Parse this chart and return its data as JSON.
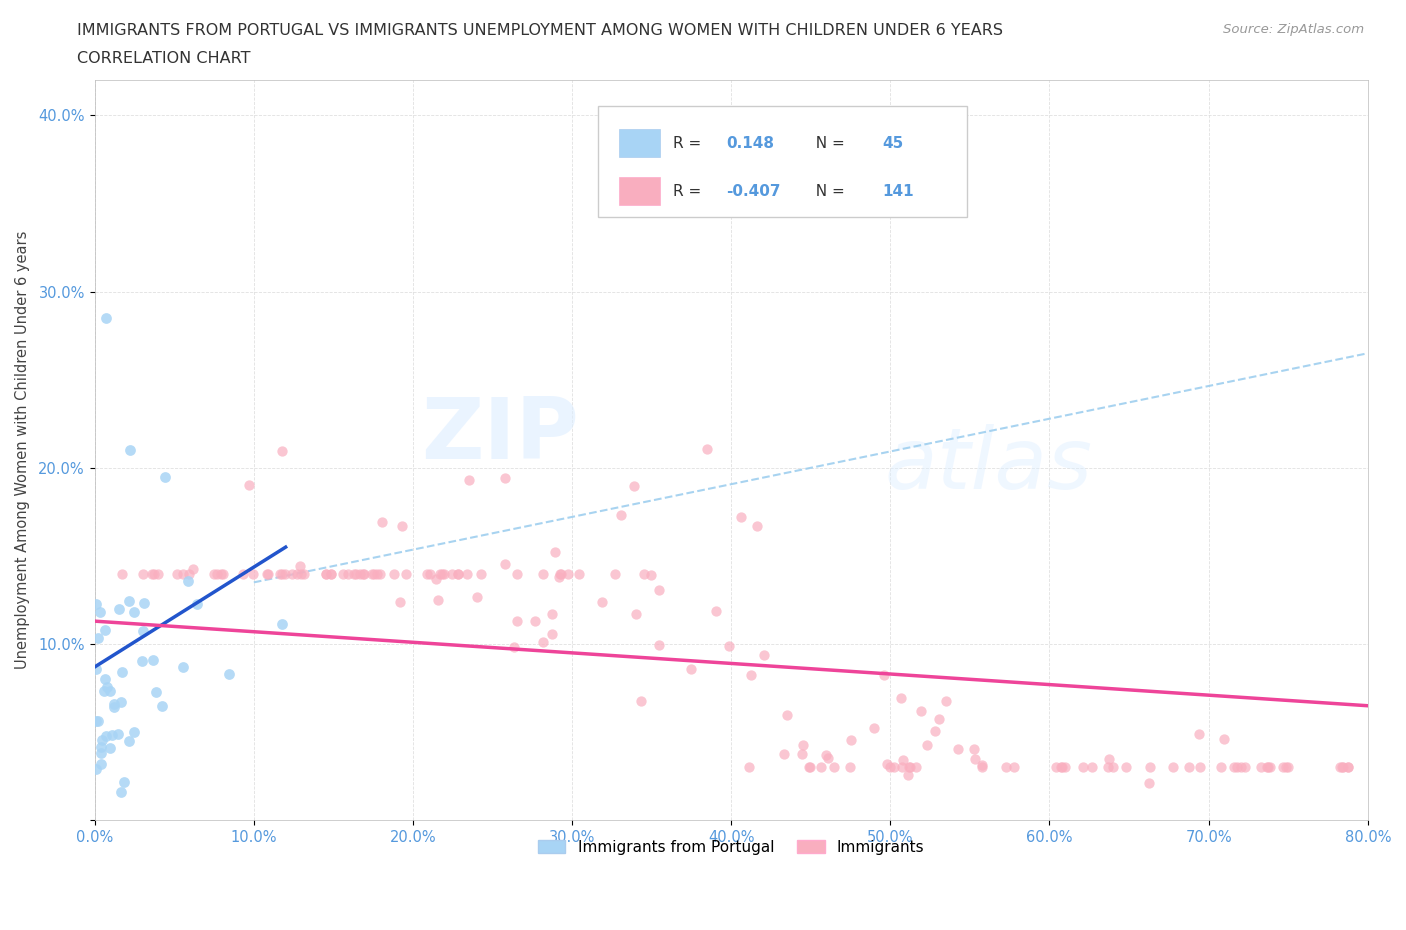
{
  "title_line1": "IMMIGRANTS FROM PORTUGAL VS IMMIGRANTS UNEMPLOYMENT AMONG WOMEN WITH CHILDREN UNDER 6 YEARS",
  "title_line2": "CORRELATION CHART",
  "source": "Source: ZipAtlas.com",
  "ylabel": "Unemployment Among Women with Children Under 6 years",
  "xlim": [
    0.0,
    0.8
  ],
  "ylim": [
    0.0,
    0.42
  ],
  "blue_color": "#A8D4F5",
  "pink_color": "#F9AEBF",
  "blue_line_color": "#2255CC",
  "pink_line_color": "#EE4499",
  "blue_dash_color": "#99CCEE",
  "legend_R_blue": "0.148",
  "legend_N_blue": "45",
  "legend_R_pink": "-0.407",
  "legend_N_pink": "141",
  "legend_label_blue": "Immigrants from Portugal",
  "legend_label_pink": "Immigrants",
  "watermark_zip": "ZIP",
  "watermark_atlas": "atlas",
  "tick_color": "#5599DD",
  "title_color": "#333333"
}
